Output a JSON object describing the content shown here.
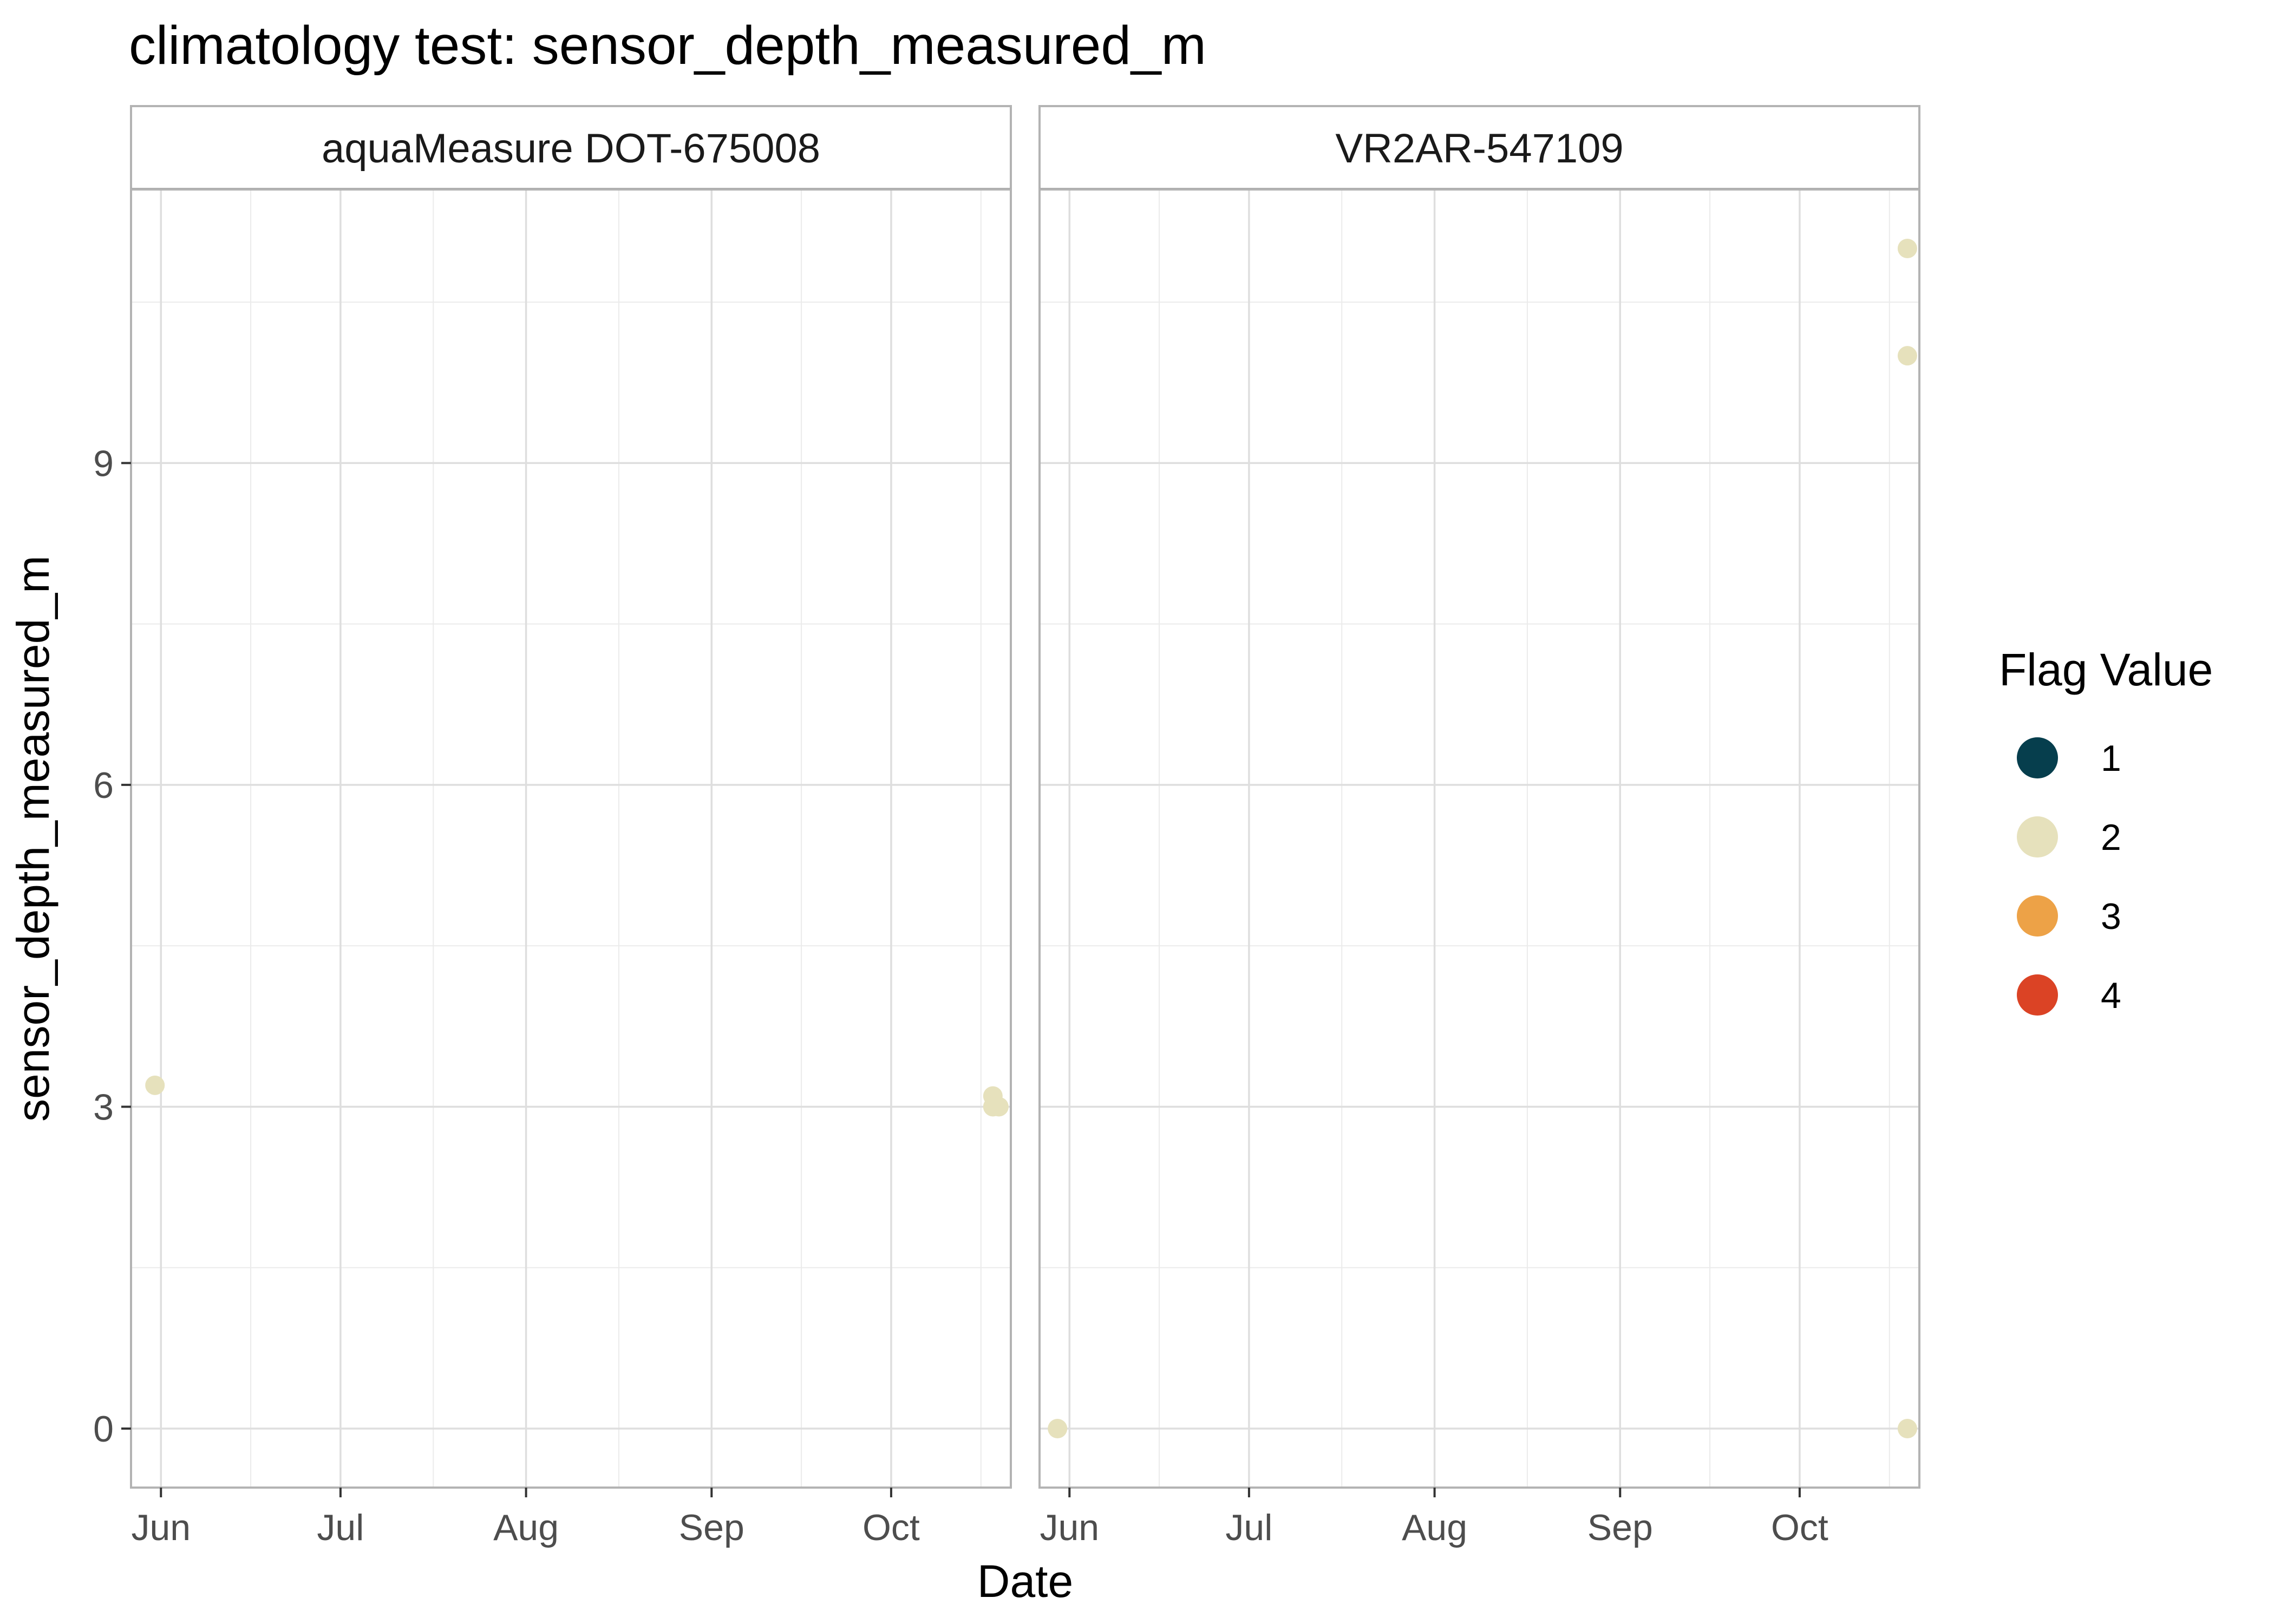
{
  "chart_data": {
    "type": "scatter",
    "title": "climatology test: sensor_depth_measured_m",
    "xlabel": "Date",
    "ylabel": "sensor_depth_measured_m",
    "x_ticks": [
      {
        "label": "Jun",
        "date": "2023-06-01"
      },
      {
        "label": "Jul",
        "date": "2023-07-01"
      },
      {
        "label": "Aug",
        "date": "2023-08-01"
      },
      {
        "label": "Sep",
        "date": "2023-09-01"
      },
      {
        "label": "Oct",
        "date": "2023-10-01"
      }
    ],
    "xlim": [
      "2023-05-27",
      "2023-10-21"
    ],
    "y_ticks": [
      0,
      3,
      6,
      9
    ],
    "ylim": [
      -0.55,
      11.55
    ],
    "grid": true,
    "legend": {
      "title": "Flag Value",
      "position": "right",
      "items": [
        {
          "label": "1",
          "color": "#063E4D"
        },
        {
          "label": "2",
          "color": "#E6E1BC"
        },
        {
          "label": "3",
          "color": "#EDA247"
        },
        {
          "label": "4",
          "color": "#DB4325"
        }
      ]
    },
    "panels": [
      {
        "strip": "aquaMeasure DOT-675008",
        "points": [
          {
            "x": "2023-05-31",
            "y": 3.2,
            "flag": "2"
          },
          {
            "x": "2023-10-18",
            "y": 3.1,
            "flag": "2"
          },
          {
            "x": "2023-10-18",
            "y": 3.0,
            "flag": "2"
          },
          {
            "x": "2023-10-19",
            "y": 3.0,
            "flag": "2"
          }
        ]
      },
      {
        "strip": "VR2AR-547109",
        "points": [
          {
            "x": "2023-05-30",
            "y": 0.0,
            "flag": "2"
          },
          {
            "x": "2023-10-19",
            "y": 11.0,
            "flag": "2"
          },
          {
            "x": "2023-10-19",
            "y": 10.0,
            "flag": "2"
          },
          {
            "x": "2023-10-19",
            "y": 0.0,
            "flag": "2"
          }
        ]
      }
    ]
  }
}
